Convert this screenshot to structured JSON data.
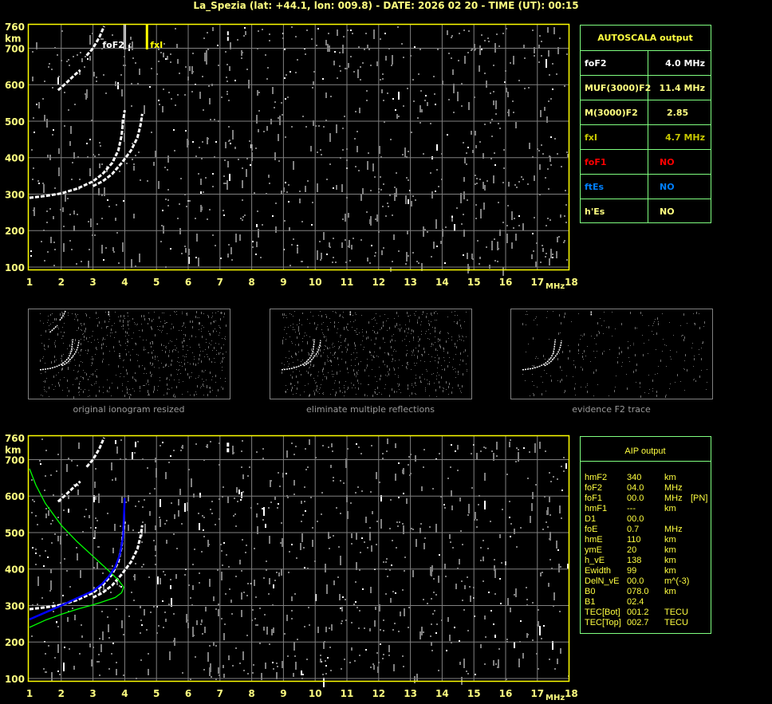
{
  "title": "La_Spezia (lat: +44.1, lon: 009.8) - DATE: 2026 02 20 - TIME (UT): 00:15",
  "colors": {
    "axis": "#ffff00",
    "label": "#ffff80",
    "grid": "#808080",
    "table_border": "#80ff80",
    "trace": "#ffffff",
    "noise": "#808080",
    "profile": "#00ff00",
    "fitted": "#0000ff",
    "fxI": "#c8c800",
    "foF1": "#ff0000",
    "ftEs": "#0080ff"
  },
  "autoscala": {
    "header": "AUTOSCALA output",
    "rows": [
      {
        "label": "foF2",
        "value": "4.0 MHz",
        "color": "#ffffff"
      },
      {
        "label": "MUF(3000)F2",
        "value": "11.4 MHz",
        "color": "#ffff80"
      },
      {
        "label": "M(3000)F2",
        "value": "2.85",
        "color": "#ffff80"
      },
      {
        "label": "fxI",
        "value": "4.7 MHz",
        "color": "#c8c800"
      },
      {
        "label": "foF1",
        "value": "NO",
        "color": "#ff0000"
      },
      {
        "label": "ftEs",
        "value": "NO",
        "color": "#0080ff"
      },
      {
        "label": "h'Es",
        "value": "NO",
        "color": "#ffff80"
      }
    ]
  },
  "aip": {
    "header": "AIP output",
    "rows": [
      [
        "hmF2",
        "340",
        "km",
        ""
      ],
      [
        "foF2",
        "04.0",
        "MHz",
        ""
      ],
      [
        "foF1",
        "00.0",
        "MHz",
        "[PN]"
      ],
      [
        "hmF1",
        "---",
        "km",
        ""
      ],
      [
        "D1",
        "00.0",
        "",
        ""
      ],
      [
        "foE",
        "0.7",
        "MHz",
        ""
      ],
      [
        "hmE",
        "110",
        "km",
        ""
      ],
      [
        "ymE",
        "20",
        "km",
        ""
      ],
      [
        "h_vE",
        "138",
        "km",
        ""
      ],
      [
        "Ewidth",
        "99",
        "km",
        ""
      ],
      [
        "DelN_vE",
        "00.0",
        "m^(-3)",
        ""
      ],
      [
        "B0",
        "078.0",
        "km",
        ""
      ],
      [
        "B1",
        "02.4",
        "",
        ""
      ],
      [
        "TEC[Bot]",
        "001.2",
        "TECU",
        ""
      ],
      [
        "TEC[Top]",
        "002.7",
        "TECU",
        ""
      ]
    ]
  },
  "thumbnails": [
    {
      "caption": "original ionogram resized"
    },
    {
      "caption": "eliminate multiple reflections"
    },
    {
      "caption": "evidence F2 trace"
    }
  ],
  "chart_data": [
    {
      "type": "scatter",
      "title": "",
      "xlabel": "MHz",
      "ylabel": "km",
      "xlim": [
        1,
        18
      ],
      "ylim": [
        100,
        760
      ],
      "x_ticks": [
        "1",
        "2",
        "3",
        "4",
        "5",
        "6",
        "7",
        "8",
        "9",
        "10",
        "11",
        "12",
        "13",
        "14",
        "15",
        "16",
        "17",
        "18"
      ],
      "y_ticks": [
        "100",
        "200",
        "300",
        "400",
        "500",
        "600",
        "700",
        "760"
      ],
      "grid": true,
      "markers": [
        {
          "name": "foF2",
          "freq": 4.0,
          "color": "#ffffff"
        },
        {
          "name": "fxI",
          "freq": 4.7,
          "color": "#ffff00"
        }
      ],
      "series": [
        {
          "name": "",
          "trace": "o",
          "points": [
            [
              1.0,
              290
            ],
            [
              1.5,
              295
            ],
            [
              2.0,
              302
            ],
            [
              2.5,
              315
            ],
            [
              3.0,
              335
            ],
            [
              3.3,
              355
            ],
            [
              3.6,
              385
            ],
            [
              3.8,
              420
            ],
            [
              3.9,
              460
            ],
            [
              3.95,
              500
            ],
            [
              4.0,
              530
            ]
          ]
        },
        {
          "name": "",
          "trace": "x",
          "points": [
            [
              3.0,
              322
            ],
            [
              3.3,
              335
            ],
            [
              3.6,
              355
            ],
            [
              3.9,
              385
            ],
            [
              4.2,
              420
            ],
            [
              4.4,
              455
            ],
            [
              4.5,
              490
            ],
            [
              4.55,
              520
            ]
          ]
        },
        {
          "name": "",
          "trace": "multiple",
          "points": [
            [
              1.9,
              585
            ],
            [
              2.1,
              600
            ],
            [
              2.4,
              625
            ],
            [
              2.6,
              640
            ]
          ]
        },
        {
          "name": "",
          "trace": "multiple",
          "points": [
            [
              2.8,
              680
            ],
            [
              3.0,
              700
            ],
            [
              3.2,
              730
            ],
            [
              3.35,
              760
            ]
          ]
        },
        {
          "name": "",
          "trace": "spike",
          "points": [
            [
              7.25,
              720
            ],
            [
              7.25,
              750
            ]
          ]
        }
      ]
    },
    {
      "type": "line",
      "title": "",
      "xlabel": "MHz",
      "ylabel": "km",
      "xlim": [
        1,
        18
      ],
      "ylim": [
        100,
        760
      ],
      "x_ticks": [
        "1",
        "2",
        "3",
        "4",
        "5",
        "6",
        "7",
        "8",
        "9",
        "10",
        "11",
        "12",
        "13",
        "14",
        "15",
        "16",
        "17",
        "18"
      ],
      "y_ticks": [
        "100",
        "200",
        "300",
        "400",
        "500",
        "600",
        "700",
        "760"
      ],
      "grid": true,
      "series": [
        {
          "name": "",
          "color": "#00ff00",
          "points": [
            [
              1.0,
              675
            ],
            [
              1.2,
              630
            ],
            [
              1.5,
              580
            ],
            [
              2.0,
              520
            ],
            [
              2.5,
              475
            ],
            [
              3.0,
              435
            ],
            [
              3.5,
              395
            ],
            [
              3.8,
              370
            ],
            [
              3.97,
              350
            ],
            [
              3.9,
              335
            ],
            [
              3.7,
              322
            ],
            [
              3.3,
              310
            ],
            [
              3.0,
              302
            ],
            [
              2.5,
              290
            ],
            [
              2.0,
              276
            ],
            [
              1.5,
              260
            ],
            [
              1.0,
              240
            ]
          ]
        },
        {
          "name": "",
          "color": "#0000ff",
          "points": [
            [
              1.0,
              262
            ],
            [
              1.5,
              281
            ],
            [
              2.0,
              300
            ],
            [
              2.5,
              320
            ],
            [
              3.0,
              340
            ],
            [
              3.3,
              360
            ],
            [
              3.5,
              380
            ],
            [
              3.7,
              405
            ],
            [
              3.85,
              440
            ],
            [
              3.95,
              490
            ],
            [
              4.0,
              595
            ]
          ]
        }
      ]
    }
  ]
}
